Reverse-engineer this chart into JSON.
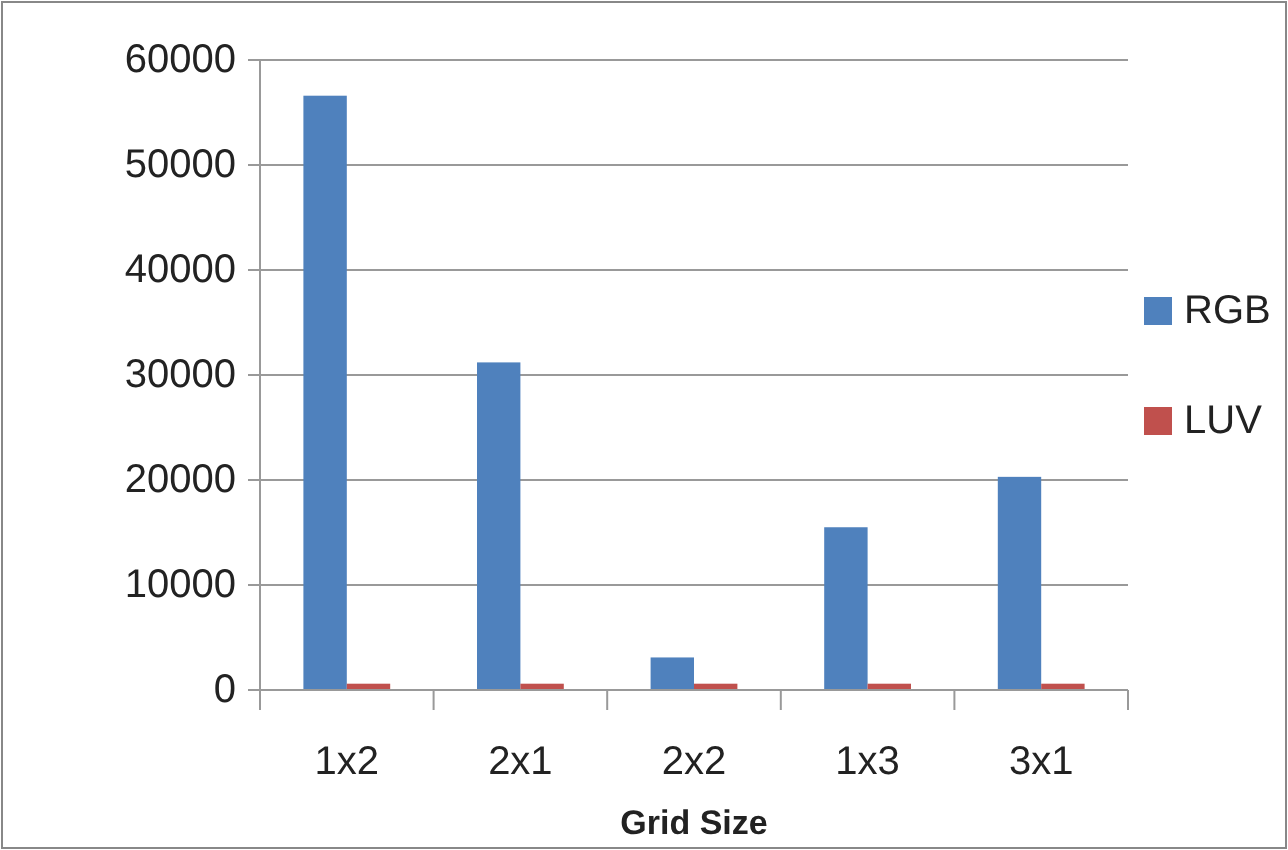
{
  "chart_data": {
    "type": "bar",
    "xlabel": "Grid Size",
    "categories": [
      "1x2",
      "2x1",
      "2x2",
      "1x3",
      "3x1"
    ],
    "series": [
      {
        "name": "RGB",
        "color": "#4f81bd",
        "values": [
          56600,
          31200,
          3100,
          15500,
          20300
        ]
      },
      {
        "name": "LUV",
        "color": "#c0504d",
        "values": [
          600,
          600,
          600,
          600,
          600
        ]
      }
    ],
    "ylim": [
      0,
      60000
    ],
    "yticks": [
      0,
      10000,
      20000,
      30000,
      40000,
      50000,
      60000
    ],
    "grid": "y",
    "legend": "right"
  }
}
